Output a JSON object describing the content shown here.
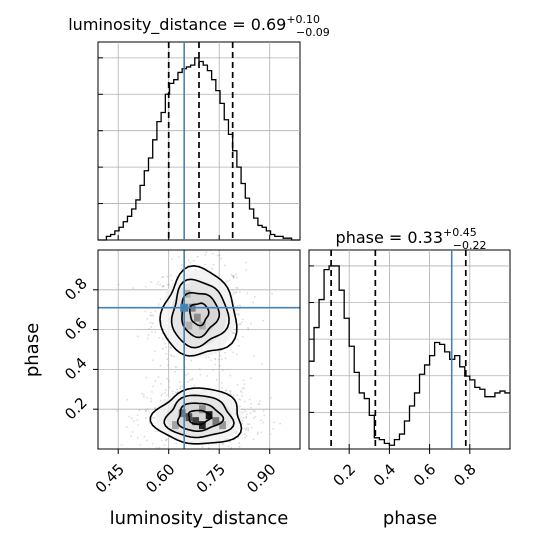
{
  "chart_data": [
    {
      "type": "histogram",
      "panel": "luminosity_distance-marginal",
      "title": {
        "name": "luminosity_distance",
        "value": "0.69",
        "plus": "+0.10",
        "minus": "−0.09"
      },
      "xlim": [
        0.39,
        0.99
      ],
      "bins": [
        0.39,
        0.4025,
        0.415,
        0.4275,
        0.44,
        0.4525,
        0.465,
        0.4775,
        0.49,
        0.5025,
        0.515,
        0.5275,
        0.54,
        0.5525,
        0.565,
        0.5775,
        0.59,
        0.6025,
        0.615,
        0.6275,
        0.64,
        0.6525,
        0.665,
        0.6775,
        0.69,
        0.7025,
        0.715,
        0.7275,
        0.74,
        0.7525,
        0.765,
        0.7775,
        0.79,
        0.8025,
        0.815,
        0.8275,
        0.84,
        0.8525,
        0.865,
        0.8775,
        0.89,
        0.9025,
        0.915,
        0.9275,
        0.94,
        0.9525,
        0.965,
        0.9775,
        0.99
      ],
      "counts": [
        0,
        0,
        0.02,
        0.03,
        0.05,
        0.07,
        0.1,
        0.13,
        0.17,
        0.22,
        0.3,
        0.38,
        0.45,
        0.55,
        0.65,
        0.7,
        0.8,
        0.86,
        0.88,
        0.92,
        0.94,
        0.95,
        0.96,
        1.0,
        0.98,
        0.96,
        0.93,
        0.88,
        0.82,
        0.75,
        0.66,
        0.58,
        0.49,
        0.4,
        0.31,
        0.23,
        0.17,
        0.12,
        0.08,
        0.07,
        0.05,
        0.03,
        0.02,
        0.02,
        0.01,
        0.01,
        0,
        0
      ],
      "quantile_lines": [
        0.6,
        0.69,
        0.79
      ],
      "truth": 0.646,
      "grid": true
    },
    {
      "type": "histogram",
      "panel": "phase-marginal",
      "title": {
        "name": "phase",
        "value": "0.33",
        "plus": "+0.45",
        "minus": "−0.22"
      },
      "xlim": [
        0.0,
        1.0
      ],
      "bins": [
        0,
        0.025,
        0.05,
        0.075,
        0.1,
        0.125,
        0.15,
        0.175,
        0.2,
        0.225,
        0.25,
        0.275,
        0.3,
        0.325,
        0.35,
        0.375,
        0.4,
        0.425,
        0.45,
        0.475,
        0.5,
        0.525,
        0.55,
        0.575,
        0.6,
        0.625,
        0.65,
        0.675,
        0.7,
        0.725,
        0.75,
        0.775,
        0.8,
        0.825,
        0.85,
        0.875,
        0.9,
        0.925,
        0.95,
        0.975,
        1.0
      ],
      "counts": [
        0.47,
        0.65,
        0.8,
        0.96,
        0.98,
        0.98,
        0.85,
        0.7,
        0.55,
        0.41,
        0.3,
        0.27,
        0.18,
        0.06,
        0.05,
        0.03,
        0.02,
        0.05,
        0.08,
        0.15,
        0.23,
        0.3,
        0.4,
        0.45,
        0.5,
        0.57,
        0.56,
        0.52,
        0.48,
        0.5,
        0.44,
        0.39,
        0.37,
        0.33,
        0.32,
        0.28,
        0.28,
        0.3,
        0.31,
        0.3
      ],
      "quantile_lines": [
        0.11,
        0.33,
        0.78
      ],
      "truth": 0.71,
      "grid": true
    },
    {
      "type": "corner-2d",
      "panel": "luminosity_distance-vs-phase",
      "xlabel": "luminosity_distance",
      "ylabel": "phase",
      "xlim": [
        0.39,
        0.99
      ],
      "ylim": [
        0.0,
        1.0
      ],
      "xticks": [
        0.45,
        0.6,
        0.75,
        0.9
      ],
      "xtick_labels": [
        "0.45",
        "0.60",
        "0.75",
        "0.90"
      ],
      "yticks": [
        0.2,
        0.4,
        0.6,
        0.8
      ],
      "ytick_labels": [
        "0.2",
        "0.4",
        "0.6",
        "0.8"
      ],
      "truth": {
        "x": 0.646,
        "y": 0.71
      },
      "modes": [
        {
          "cx": 0.69,
          "cy": 0.68,
          "sx": 0.055,
          "sy": 0.11
        },
        {
          "cx": 0.69,
          "cy": 0.16,
          "sx": 0.065,
          "sy": 0.07
        }
      ],
      "contour_levels": [
        0.5,
        1.0,
        1.5,
        2.0
      ],
      "density_cells": [
        {
          "x": 0.655,
          "y": 0.78,
          "v": 0.35
        },
        {
          "x": 0.67,
          "y": 0.71,
          "v": 0.55
        },
        {
          "x": 0.685,
          "y": 0.66,
          "v": 0.5
        },
        {
          "x": 0.66,
          "y": 0.62,
          "v": 0.35
        },
        {
          "x": 0.7,
          "y": 0.62,
          "v": 0.35
        },
        {
          "x": 0.64,
          "y": 0.18,
          "v": 0.6
        },
        {
          "x": 0.66,
          "y": 0.16,
          "v": 0.75
        },
        {
          "x": 0.68,
          "y": 0.14,
          "v": 0.85
        },
        {
          "x": 0.7,
          "y": 0.12,
          "v": 0.95
        },
        {
          "x": 0.72,
          "y": 0.17,
          "v": 1.0
        },
        {
          "x": 0.74,
          "y": 0.14,
          "v": 0.6
        },
        {
          "x": 0.76,
          "y": 0.12,
          "v": 0.45
        },
        {
          "x": 0.62,
          "y": 0.12,
          "v": 0.4
        },
        {
          "x": 0.7,
          "y": 0.2,
          "v": 0.5
        }
      ],
      "grid": true
    },
    {
      "type": "axis-ticks",
      "panel": "phase-x-axis",
      "xlabel": "phase",
      "xticks": [
        0.2,
        0.4,
        0.6,
        0.8
      ],
      "xtick_labels": [
        "0.2",
        "0.4",
        "0.6",
        "0.8"
      ]
    }
  ],
  "colors": {
    "truth": "#4682b4",
    "hist": "#000000",
    "grid": "#b0b0b0",
    "scatter": "#9a9a9a"
  }
}
